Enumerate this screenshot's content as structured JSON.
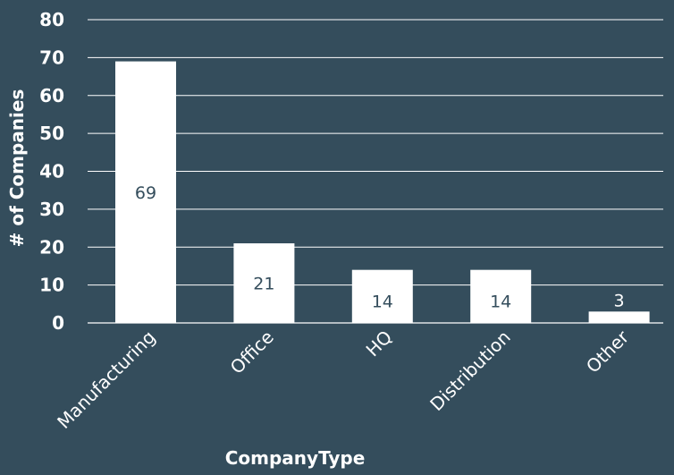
{
  "chart_data": {
    "type": "bar",
    "categories": [
      "Manufacturing",
      "Office",
      "HQ",
      "Distribution",
      "Other"
    ],
    "values": [
      69,
      21,
      14,
      14,
      3
    ],
    "title": "",
    "xlabel": "CompanyType",
    "ylabel": "# of Companies",
    "ylim": [
      0,
      80
    ],
    "yticks": [
      0,
      10,
      20,
      30,
      40,
      50,
      60,
      70,
      80
    ],
    "grid": true,
    "legend": "none",
    "colors": {
      "background": "#344d5c",
      "bar": "#ffffff",
      "bar_label": "#344d5c",
      "bar_label_outside": "#ffffff",
      "axis_text": "#ffffff",
      "grid": "#ffffff"
    }
  }
}
